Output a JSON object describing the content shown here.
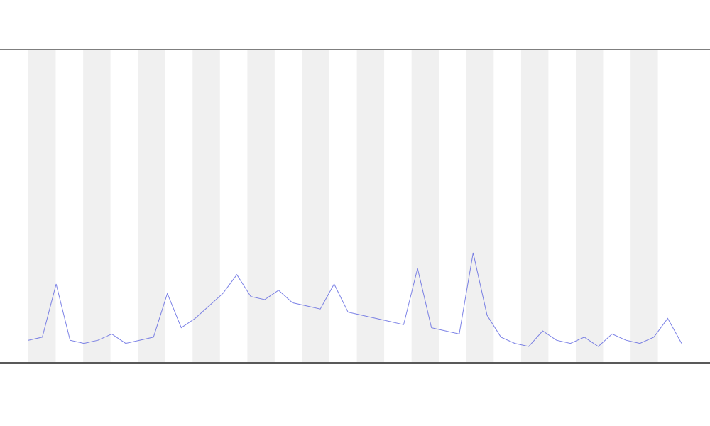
{
  "chart_data": {
    "type": "line",
    "categories": [
      null,
      null,
      null,
      null,
      null,
      null,
      null,
      null,
      null,
      null,
      null,
      null,
      null,
      null,
      null,
      null,
      null,
      null,
      null,
      null,
      null,
      null,
      null,
      null,
      null,
      null,
      null,
      null,
      null,
      null,
      null,
      null,
      null,
      null,
      null,
      null,
      null,
      null,
      null,
      null,
      null,
      null,
      null,
      null,
      null,
      null,
      null,
      null
    ],
    "series": [
      {
        "color": "#5b63e0",
        "values": [
          7,
          8,
          25,
          7,
          6,
          7,
          9,
          6,
          7,
          8,
          22,
          11,
          14,
          18,
          22,
          28,
          21,
          20,
          23,
          19,
          18,
          17,
          25,
          16,
          15,
          14,
          13,
          12,
          30,
          11,
          10,
          9,
          35,
          15,
          8,
          6,
          5,
          10,
          7,
          6,
          8,
          5,
          9,
          7,
          6,
          8,
          14,
          6
        ]
      }
    ],
    "ylim": [
      0,
      100
    ]
  }
}
